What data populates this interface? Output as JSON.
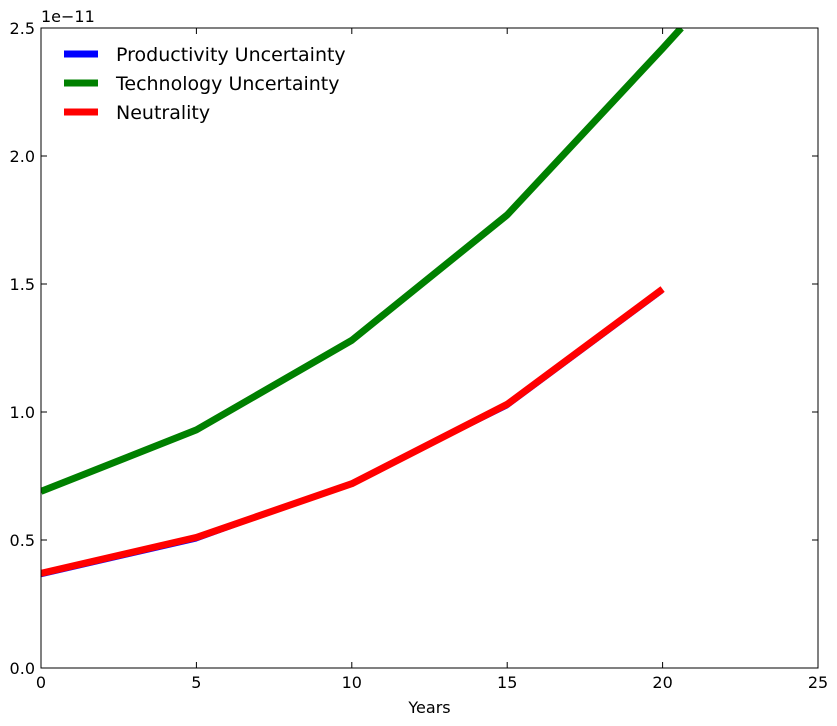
{
  "chart_data": {
    "type": "line",
    "title": "",
    "xlabel": "Years",
    "ylabel": "",
    "offset_label": "1e−11",
    "xlim": [
      0,
      25
    ],
    "ylim": [
      0,
      2.5
    ],
    "xticks": [
      0,
      5,
      10,
      15,
      20,
      25
    ],
    "xtick_labels": [
      "0",
      "5",
      "10",
      "15",
      "20",
      "25"
    ],
    "yticks": [
      0,
      0.5,
      1.0,
      1.5,
      2.0,
      2.5
    ],
    "ytick_labels": [
      "0.0",
      "0.5",
      "1.0",
      "1.5",
      "2.0",
      "2.5"
    ],
    "grid": false,
    "legend_position": "top-left",
    "series": [
      {
        "name": "Productivity Uncertainty",
        "color": "#0000ff",
        "x": [
          0,
          5,
          10,
          15,
          20
        ],
        "y": [
          0.36,
          0.5,
          0.72,
          1.02,
          1.47
        ]
      },
      {
        "name": "Technology Uncertainty",
        "color": "#008000",
        "x": [
          0,
          5,
          10,
          15,
          20,
          20.6
        ],
        "y": [
          0.69,
          0.93,
          1.28,
          1.77,
          2.42,
          2.5
        ]
      },
      {
        "name": "Neutrality",
        "color": "#ff0000",
        "x": [
          0,
          5,
          10,
          15,
          20
        ],
        "y": [
          0.37,
          0.51,
          0.72,
          1.03,
          1.48
        ]
      }
    ]
  }
}
